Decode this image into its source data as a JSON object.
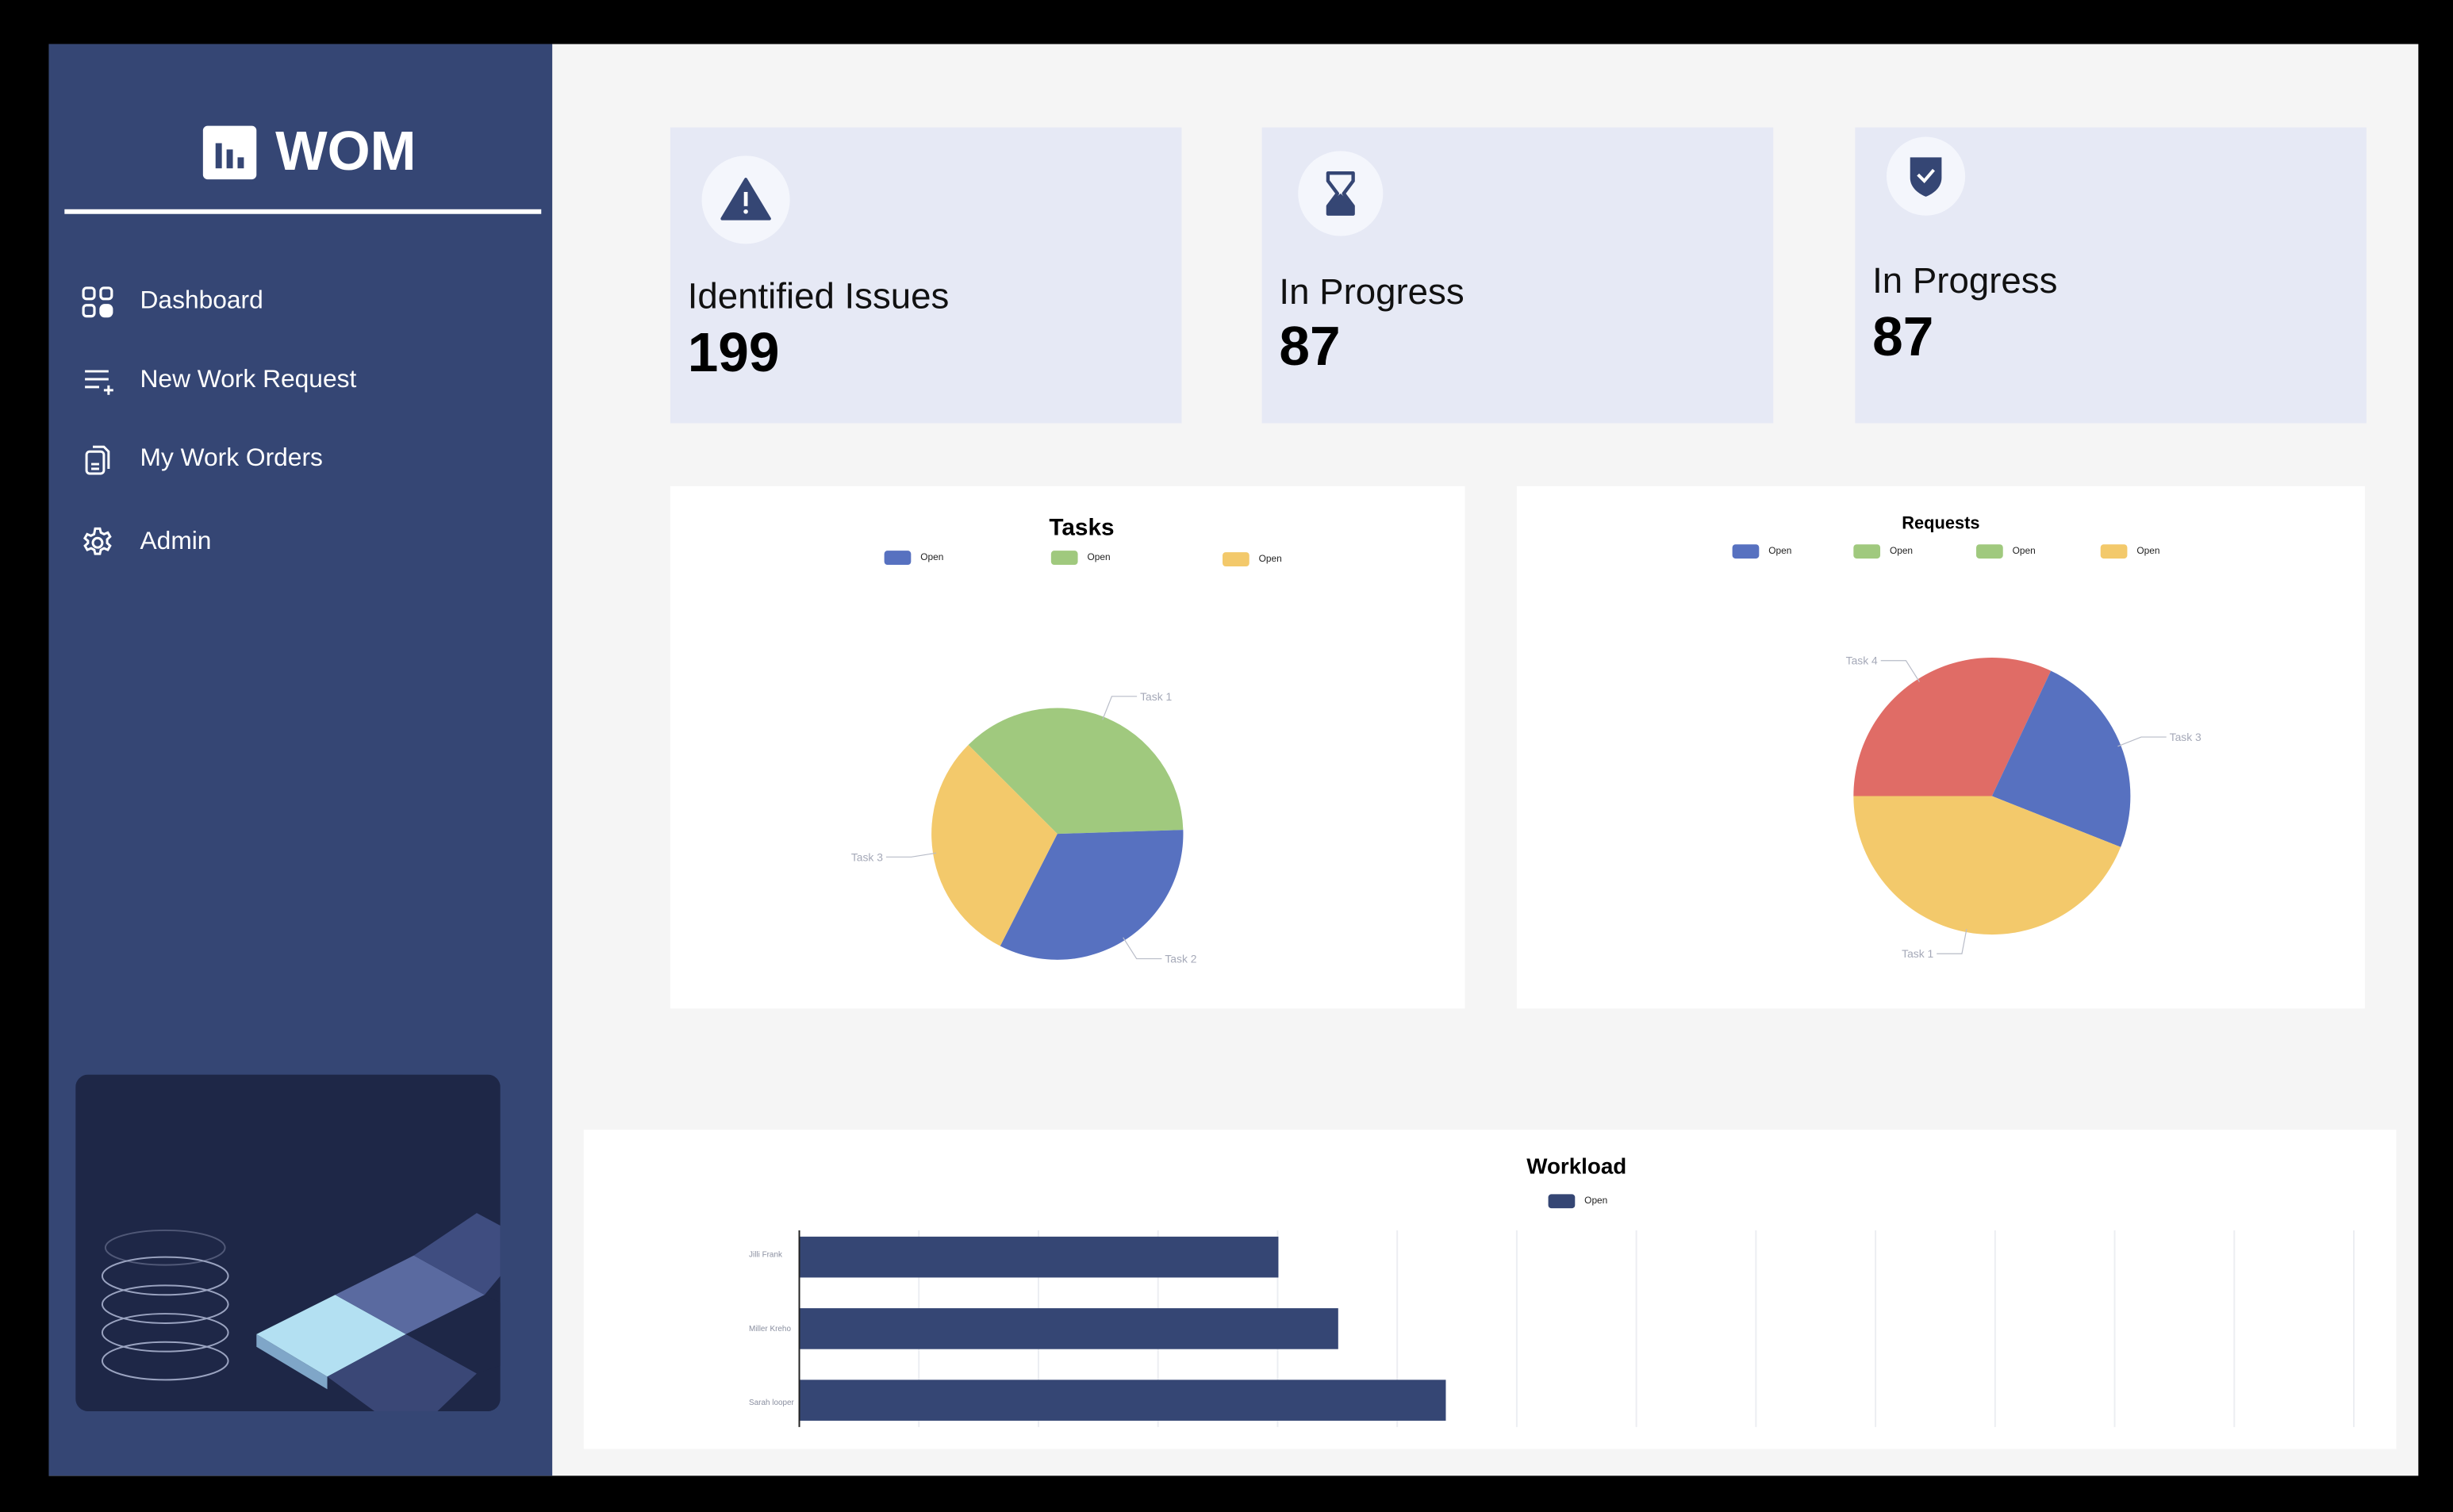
{
  "brand": {
    "name": "WOM",
    "icon": "bar-chart-icon"
  },
  "sidebar": {
    "items": [
      {
        "label": "Dashboard",
        "icon": "grid-icon"
      },
      {
        "label": "New Work Request",
        "icon": "list-add-icon"
      },
      {
        "label": "My Work Orders",
        "icon": "documents-icon"
      },
      {
        "label": "Admin",
        "icon": "gear-icon"
      }
    ]
  },
  "stats": [
    {
      "label": "Identified Issues",
      "value": "199",
      "icon": "warning-icon"
    },
    {
      "label": "In Progress",
      "value": "87",
      "icon": "hourglass-icon"
    },
    {
      "label": "In Progress",
      "value": "87",
      "icon": "shield-check-icon"
    }
  ],
  "colors": {
    "primary": "#354674",
    "card": "#e6e9f5",
    "blue": "#5771c0",
    "green": "#a0c97e",
    "yellow": "#f3c96b",
    "red": "#e06c66"
  },
  "chart_data": [
    {
      "type": "pie",
      "title": "Tasks",
      "legend": [
        {
          "label": "Open",
          "color": "#5771c0"
        },
        {
          "label": "Open",
          "color": "#a0c97e"
        },
        {
          "label": "Open",
          "color": "#f3c96b"
        }
      ],
      "slices": [
        {
          "label": "Task 1",
          "value": 37,
          "color": "#a0c97e"
        },
        {
          "label": "Task 2",
          "value": 33,
          "color": "#5771c0"
        },
        {
          "label": "Task 3",
          "value": 30,
          "color": "#f3c96b"
        }
      ]
    },
    {
      "type": "pie",
      "title": "Requests",
      "legend": [
        {
          "label": "Open",
          "color": "#5771c0"
        },
        {
          "label": "Open",
          "color": "#a0c97e"
        },
        {
          "label": "Open",
          "color": "#a0c97e"
        },
        {
          "label": "Open",
          "color": "#f3c96b"
        }
      ],
      "slices": [
        {
          "label": "Task 4",
          "value": 32,
          "color": "#e06c66"
        },
        {
          "label": "Task 3",
          "value": 24,
          "color": "#5771c0"
        },
        {
          "label": "Task 1",
          "value": 44,
          "color": "#f3c96b"
        }
      ]
    },
    {
      "type": "bar",
      "orientation": "horizontal",
      "title": "Workload",
      "legend": [
        {
          "label": "Open",
          "color": "#354674"
        }
      ],
      "categories": [
        "Jilli Frank",
        "Miller Kreho",
        "Sarah looper"
      ],
      "series": [
        {
          "name": "Open",
          "values": [
            4,
            4.5,
            5.4
          ]
        }
      ],
      "xlim": [
        0,
        13
      ],
      "grid": true
    }
  ]
}
